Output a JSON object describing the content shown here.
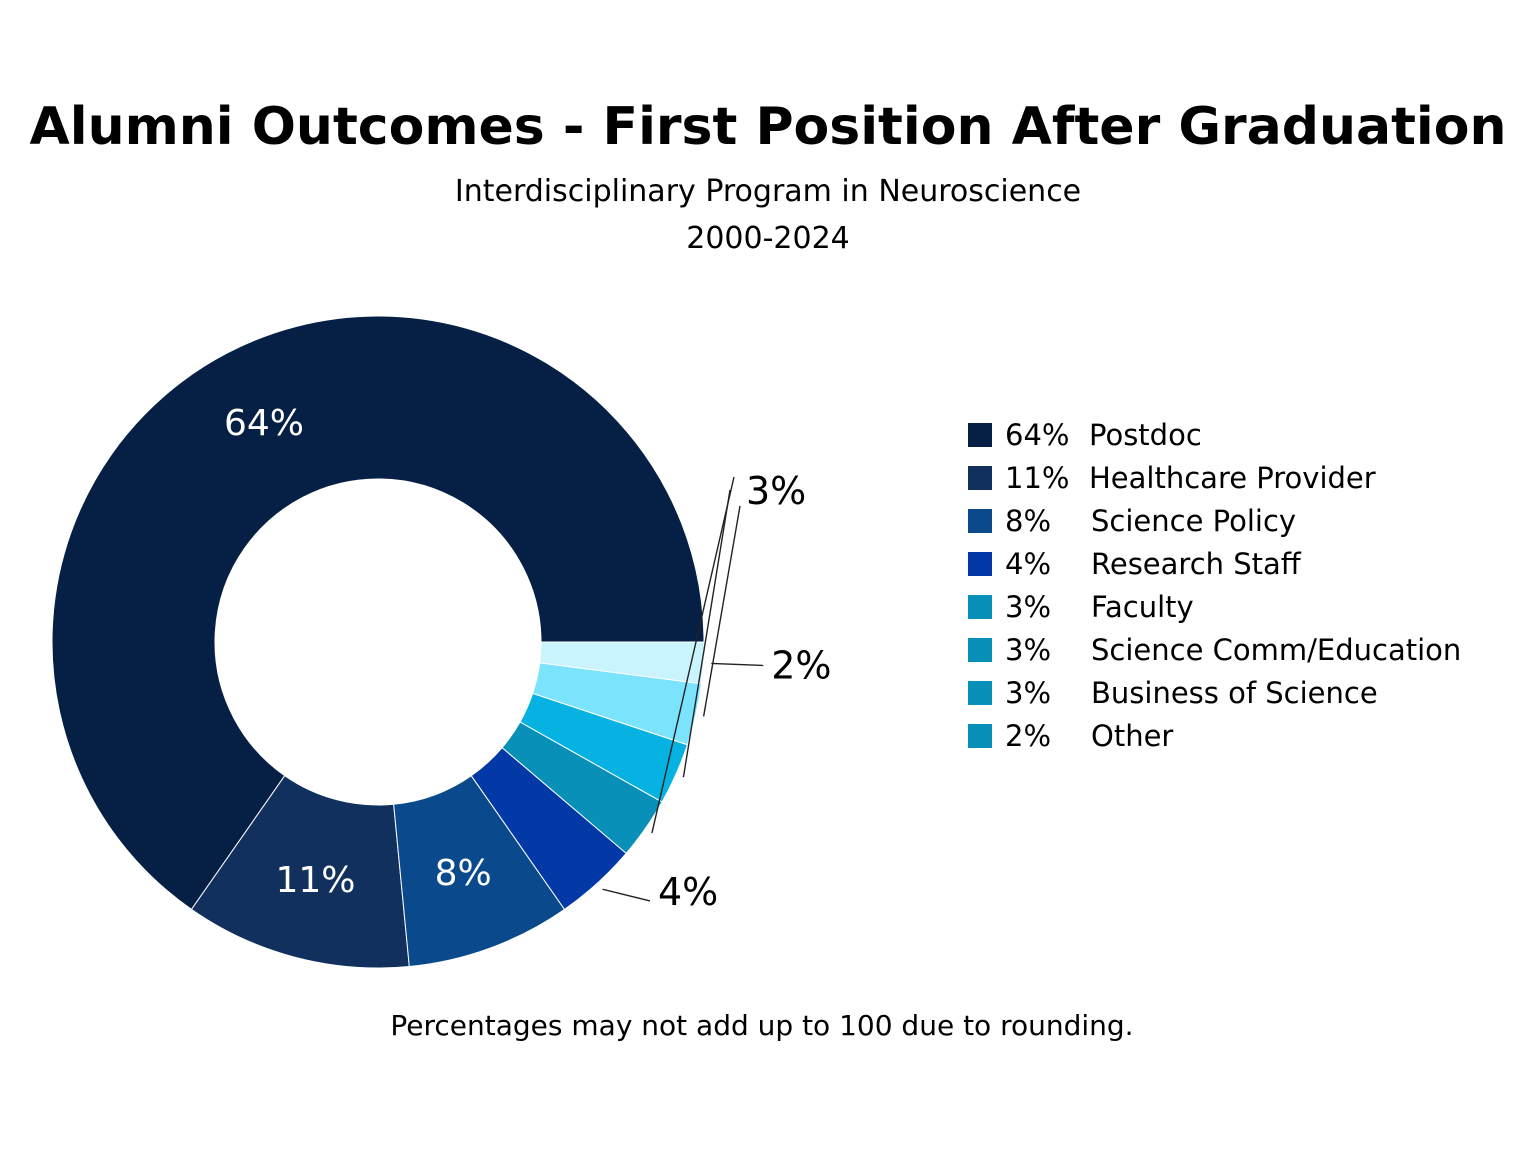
{
  "chart_data": {
    "type": "pie",
    "title": "Alumni Outcomes - First Position After Graduation",
    "subtitle": [
      "Interdisciplinary Program in Neuroscience",
      "2000-2024"
    ],
    "footnote": "Percentages may not add up to 100 due to rounding.",
    "legend_position": "right",
    "slices": [
      {
        "label": "Postdoc",
        "value": 64,
        "pct_label": "64%",
        "color": "#061f45",
        "legend_color": "#061f45"
      },
      {
        "label": "Healthcare Provider",
        "value": 11,
        "pct_label": "11%",
        "color": "#12305e",
        "legend_color": "#12305e"
      },
      {
        "label": "Science Policy",
        "value": 8,
        "pct_label": "8%",
        "color": "#0a4a8c",
        "legend_color": "#0a4a8c"
      },
      {
        "label": "Research Staff",
        "value": 4,
        "pct_label": "4%",
        "color": "#0239a6",
        "legend_color": "#0239a6"
      },
      {
        "label": "Faculty",
        "value": 3,
        "pct_label": "3%",
        "color": "#0890b8",
        "legend_color": "#0890b8"
      },
      {
        "label": "Science Comm/Education",
        "value": 3,
        "pct_label": "3%",
        "color": "#06b2e1",
        "legend_color": "#0890b8"
      },
      {
        "label": "Business of Science",
        "value": 3,
        "pct_label": "3%",
        "color": "#7ce3fc",
        "legend_color": "#0890b8"
      },
      {
        "label": "Other",
        "value": 2,
        "pct_label": "2%",
        "color": "#c9f4fe",
        "legend_color": "#0890b8"
      }
    ],
    "slice_labels": [
      {
        "text": "64%",
        "slice": 0,
        "placement": "inside"
      },
      {
        "text": "11%",
        "slice": 1,
        "placement": "inside"
      },
      {
        "text": "8%",
        "slice": 2,
        "placement": "inside"
      },
      {
        "text": "4%",
        "slice": 3,
        "placement": "outside"
      },
      {
        "text": "3%",
        "slices": [
          4,
          5,
          6
        ],
        "placement": "outside"
      },
      {
        "text": "2%",
        "slice": 7,
        "placement": "outside"
      }
    ]
  }
}
